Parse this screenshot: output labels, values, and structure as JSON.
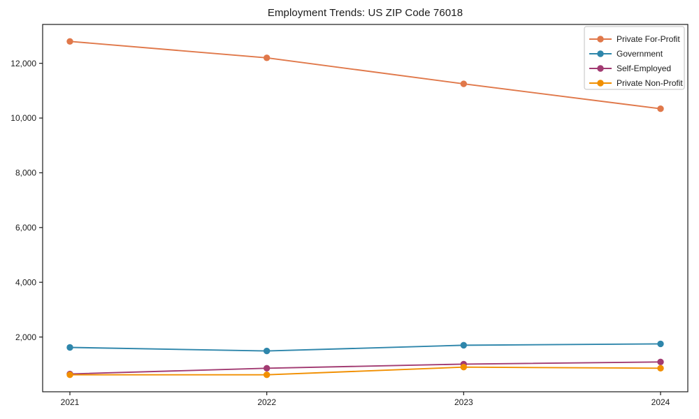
{
  "title": "Employment Trends: US ZIP Code 76018",
  "chart_data": {
    "type": "line",
    "title": "Employment Trends: US ZIP Code 76018",
    "x": [
      2021,
      2022,
      2023,
      2024
    ],
    "x_tick_labels": [
      "2021",
      "2022",
      "2023",
      "2024"
    ],
    "series": [
      {
        "name": "Private For-Profit",
        "color": "#E0784A",
        "marker": "o",
        "values": [
          12800,
          12200,
          11250,
          10340
        ]
      },
      {
        "name": "Government",
        "color": "#2E86AB",
        "marker": "o",
        "values": [
          1620,
          1490,
          1700,
          1750
        ]
      },
      {
        "name": "Self-Employed",
        "color": "#A23B72",
        "marker": "o",
        "values": [
          650,
          860,
          1010,
          1090
        ]
      },
      {
        "name": "Private Non-Profit",
        "color": "#F18F01",
        "marker": "o",
        "values": [
          620,
          620,
          900,
          860
        ]
      }
    ],
    "xlabel": "",
    "ylabel": "",
    "ylim": [
      0,
      13420
    ],
    "yticks": [
      2000,
      4000,
      6000,
      8000,
      10000,
      12000
    ],
    "ytick_labels": [
      "2,000",
      "4,000",
      "6,000",
      "8,000",
      "10,000",
      "12,000"
    ],
    "grid": false,
    "legend_position": "upper right",
    "axis_color": "#1a1a1a",
    "legend_border_color": "#cccccc",
    "background_color": "#ffffff"
  }
}
